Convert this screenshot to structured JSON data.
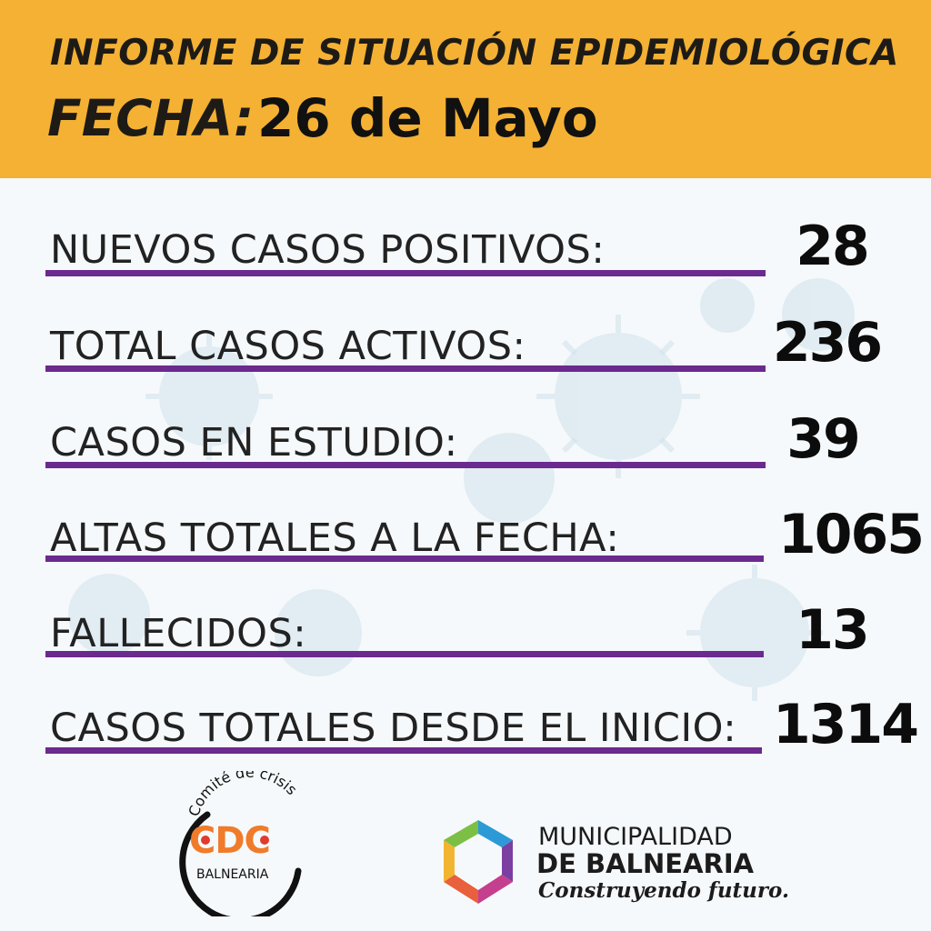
{
  "header": {
    "title": "INFORME DE SITUACIÓN EPIDEMIOLÓGICA",
    "date_label": "FECHA:",
    "date_value": "26 de Mayo"
  },
  "stats": [
    {
      "label": "NUEVOS CASOS POSITIVOS:",
      "value": "28"
    },
    {
      "label": "TOTAL CASOS ACTIVOS:",
      "value": "236"
    },
    {
      "label": "CASOS EN ESTUDIO:",
      "value": "39"
    },
    {
      "label": "ALTAS TOTALES A LA FECHA:",
      "value": "1065"
    },
    {
      "label": "FALLECIDOS:",
      "value": "13"
    },
    {
      "label": "CASOS TOTALES DESDE EL INICIO:",
      "value": "1314"
    }
  ],
  "cdc_logo": {
    "arc_text": "Comité de crisis",
    "acronym": "CDC",
    "city": "BALNEARIA"
  },
  "municipality": {
    "line1": "MUNICIPALIDAD",
    "line2": "DE BALNEARIA",
    "slogan": "Construyendo futuro."
  },
  "colors": {
    "header_bg": "#f4b133",
    "underline": "#6b2a8e",
    "cdc_orange": "#f07b2a",
    "virus_tint": "#9fc3d4"
  }
}
